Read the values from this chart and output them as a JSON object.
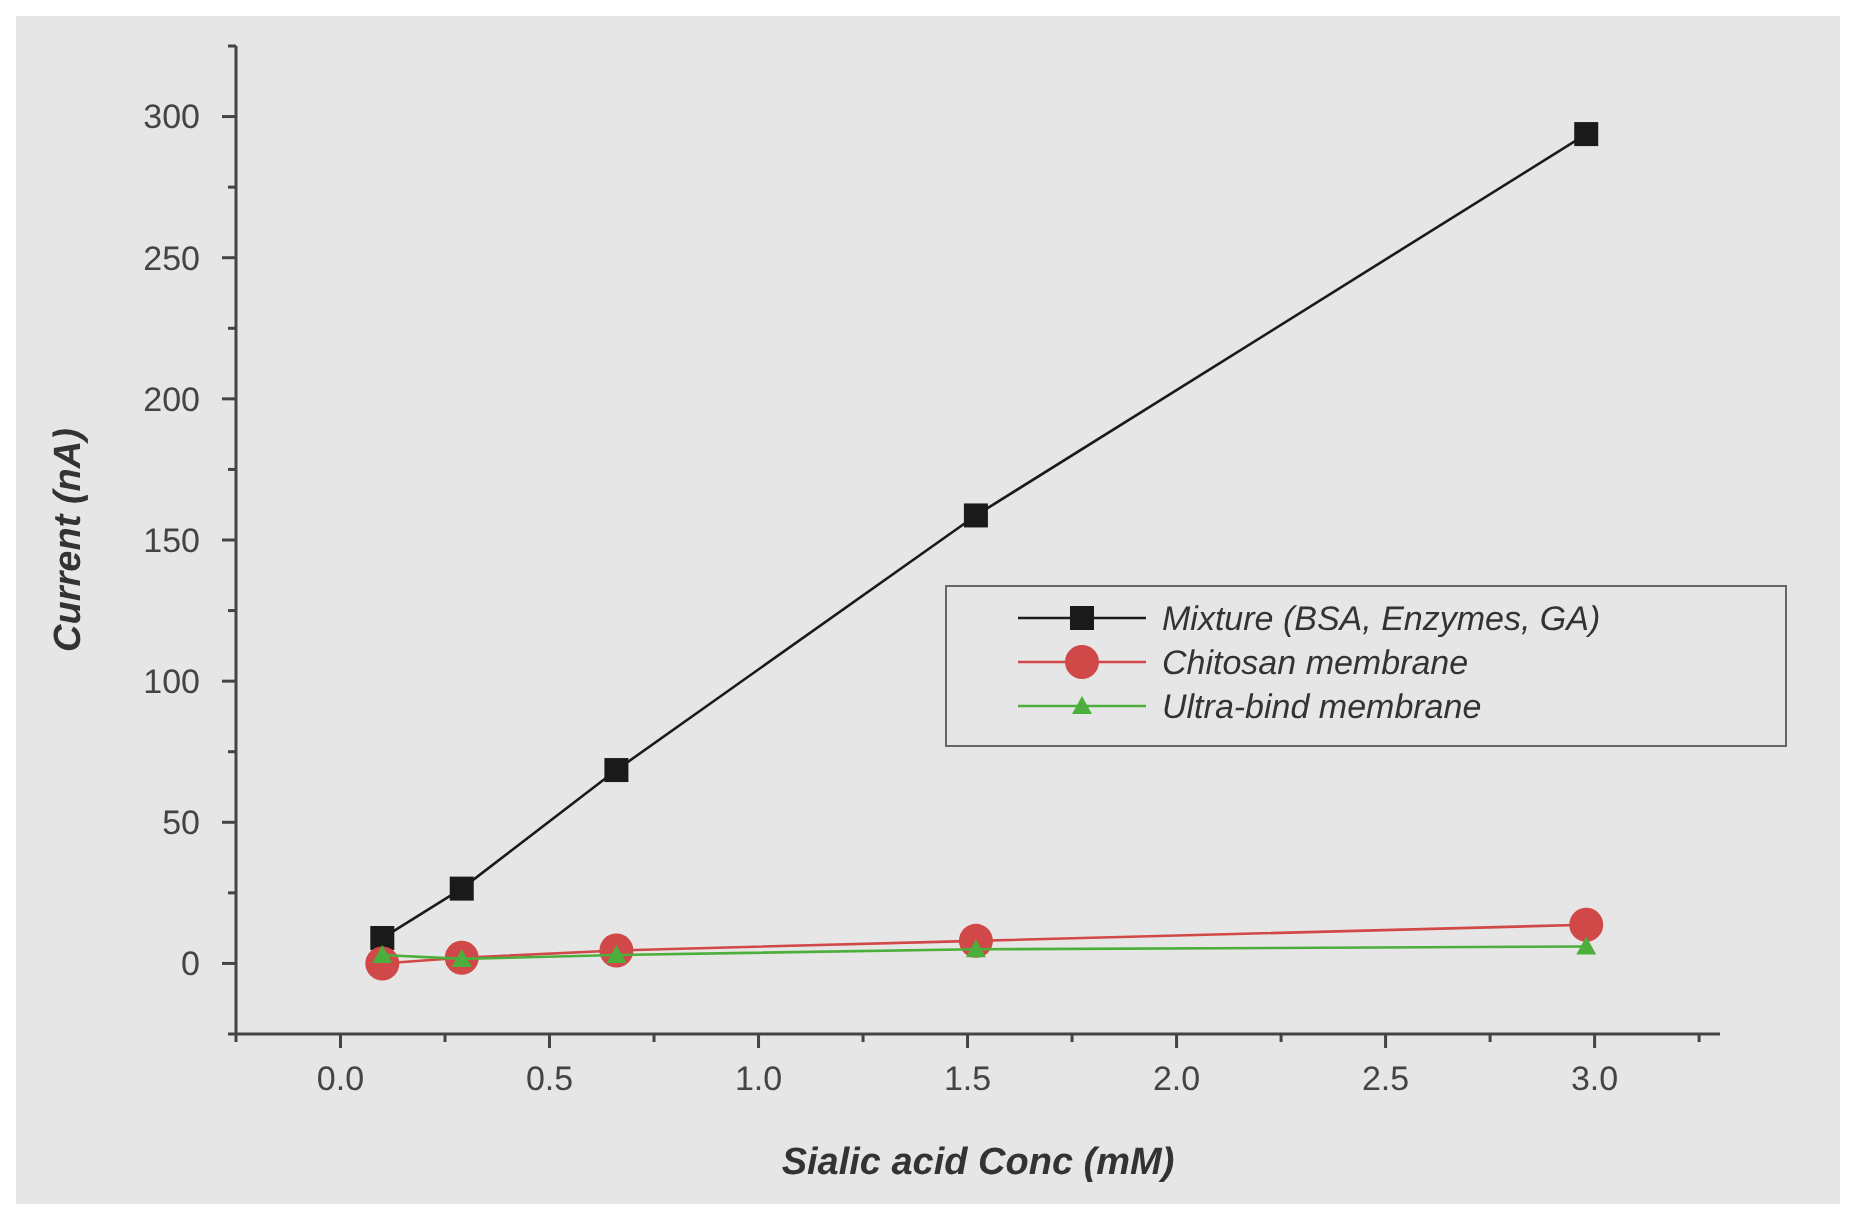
{
  "chart_data": {
    "type": "line",
    "xlabel": "Sialic acid Conc (mM)",
    "ylabel": "Current (nA)",
    "x": [
      0.1,
      0.29,
      0.66,
      1.52,
      2.98
    ],
    "series": [
      {
        "name": "Mixture (BSA, Enzymes, GA)",
        "color": "#1a1a1a",
        "marker": "square",
        "values": [
          9,
          26.5,
          68.5,
          158.7,
          293.8
        ]
      },
      {
        "name": "Chitosan membrane",
        "color": "#d04848",
        "marker": "circle",
        "values": [
          0,
          2,
          4.6,
          8,
          13.7
        ]
      },
      {
        "name": "Ultra-bind membrane",
        "color": "#4caf3c",
        "marker": "triangle",
        "values": [
          3,
          1.6,
          3,
          5,
          6
        ]
      }
    ],
    "xlim": [
      -0.25,
      3.3
    ],
    "xticks": [
      {
        "value": -0.25,
        "label": null
      },
      {
        "value": 0,
        "label": "0.0"
      },
      {
        "value": 0.25,
        "label": null
      },
      0.5,
      {
        "value": 0.75,
        "label": null
      },
      {
        "value": 1,
        "label": "1.0"
      },
      {
        "value": 1.25,
        "label": null
      },
      1.5,
      {
        "value": 1.75,
        "label": null
      },
      {
        "value": 2,
        "label": "2.0"
      },
      {
        "value": 2.25,
        "label": null
      },
      2.5,
      {
        "value": 2.75,
        "label": null
      },
      {
        "value": 3,
        "label": "3.0"
      },
      {
        "value": 3.25,
        "label": null
      }
    ],
    "ylim": [
      -25,
      325
    ],
    "yticks": [
      {
        "value": -25,
        "label": null
      },
      0,
      {
        "value": 25,
        "label": null
      },
      50,
      {
        "value": 75,
        "label": null
      },
      100,
      {
        "value": 125,
        "label": null
      },
      150,
      {
        "value": 175,
        "label": null
      },
      200,
      {
        "value": 225,
        "label": null
      },
      250,
      {
        "value": 275,
        "label": null
      },
      300,
      {
        "value": 325,
        "label": null
      }
    ],
    "legend": "right",
    "grid": false,
    "line_style": "solid"
  }
}
